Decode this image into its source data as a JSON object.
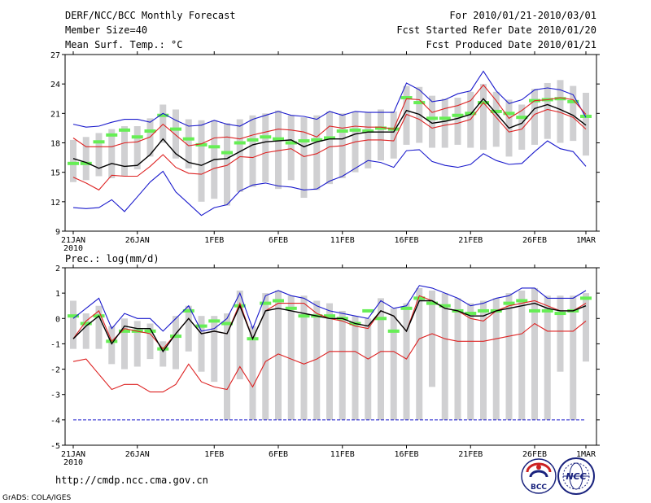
{
  "header": {
    "title": "DERF/NCC/BCC Monthly Forecast",
    "member_size": "Member Size=40",
    "variable": "Mean Surf. Temp.: °C",
    "period": "For 2010/01/21-2010/03/01",
    "fcst_started": "Fcst Started Refer Date 2010/01/20",
    "fcst_produced": "Fcst Produced Date 2010/01/21"
  },
  "footer": {
    "url": "http://cmdp.ncc.cma.gov.cn",
    "credit": "GrADS: COLA/IGES",
    "logo_bcc": "BCC",
    "logo_ncc": "NCC"
  },
  "colors": {
    "box": "#d0d0d2",
    "member": "#66ee55",
    "mean": "#000000",
    "band": "#dd2222",
    "extreme": "#1a1acc",
    "logo_blue": "#1a237e",
    "logo_red": "#cc2222"
  },
  "chart_data": [
    {
      "type": "line",
      "title": "Mean Surf. Temp.: °C",
      "xlabel": "",
      "ylabel": "°C",
      "ylim": [
        9,
        27
      ],
      "yticks": [
        "9",
        "12",
        "15",
        "18",
        "21",
        "24",
        "27"
      ],
      "xlim": [
        0,
        40
      ],
      "xticks": [
        {
          "x": 0,
          "label": "21JAN"
        },
        {
          "x": 5,
          "label": "26JAN"
        },
        {
          "x": 11,
          "label": "1FEB"
        },
        {
          "x": 16,
          "label": "6FEB"
        },
        {
          "x": 21,
          "label": "11FEB"
        },
        {
          "x": 26,
          "label": "16FEB"
        },
        {
          "x": 31,
          "label": "21FEB"
        },
        {
          "x": 36,
          "label": "26FEB"
        },
        {
          "x": 40,
          "label": "1MAR"
        }
      ],
      "year_label": "2010",
      "series": [
        {
          "name": "max",
          "values": [
            19.9,
            19.6,
            19.7,
            20.1,
            20.4,
            20.4,
            20.1,
            21.0,
            20.3,
            19.7,
            19.8,
            20.3,
            19.9,
            19.7,
            20.4,
            20.8,
            21.2,
            20.8,
            20.7,
            20.4,
            21.2,
            20.8,
            21.2,
            21.1,
            21.1,
            21.1,
            24.1,
            23.4,
            22.2,
            22.4,
            23.0,
            23.3,
            25.3,
            23.3,
            22.0,
            22.4,
            23.4,
            23.6,
            23.4,
            22.9,
            20.6
          ]
        },
        {
          "name": "upper",
          "values": [
            18.5,
            17.6,
            17.6,
            17.6,
            18.0,
            18.1,
            18.6,
            19.9,
            18.8,
            17.7,
            17.9,
            18.5,
            18.6,
            18.4,
            18.8,
            19.1,
            19.4,
            19.3,
            19.1,
            18.6,
            19.7,
            19.5,
            19.7,
            19.6,
            19.6,
            19.4,
            22.5,
            22.4,
            21.1,
            21.5,
            21.8,
            22.3,
            23.9,
            22.3,
            20.5,
            21.3,
            22.3,
            22.4,
            22.6,
            22.4,
            20.9
          ]
        },
        {
          "name": "mean",
          "values": [
            16.4,
            16.0,
            15.4,
            15.9,
            15.6,
            15.7,
            16.8,
            18.4,
            16.9,
            16.0,
            15.7,
            16.3,
            16.4,
            17.1,
            17.8,
            18.1,
            18.2,
            18.3,
            17.6,
            18.1,
            18.4,
            18.4,
            18.9,
            19.1,
            19.1,
            19.1,
            21.3,
            20.9,
            20.0,
            20.2,
            20.5,
            20.9,
            22.5,
            21.0,
            19.5,
            20.0,
            21.5,
            21.9,
            21.4,
            20.8,
            19.8
          ]
        },
        {
          "name": "lower",
          "values": [
            14.5,
            13.9,
            13.2,
            14.7,
            14.6,
            14.6,
            15.6,
            16.8,
            15.5,
            14.9,
            14.8,
            15.4,
            15.7,
            16.6,
            16.5,
            17.0,
            17.2,
            17.4,
            16.6,
            16.9,
            17.6,
            17.7,
            18.1,
            18.3,
            18.3,
            18.2,
            20.9,
            20.4,
            19.5,
            19.8,
            20.0,
            20.4,
            22.1,
            20.6,
            19.1,
            19.4,
            20.9,
            21.4,
            21.1,
            20.6,
            19.4
          ]
        },
        {
          "name": "min",
          "values": [
            11.4,
            11.3,
            11.4,
            12.2,
            11.0,
            12.5,
            14.0,
            15.1,
            13.0,
            11.8,
            10.6,
            11.4,
            11.7,
            13.1,
            13.7,
            13.9,
            13.6,
            13.5,
            13.2,
            13.3,
            14.1,
            14.6,
            15.4,
            16.2,
            16.0,
            15.5,
            17.2,
            17.3,
            16.1,
            15.7,
            15.5,
            15.8,
            16.9,
            16.2,
            15.8,
            15.9,
            17.1,
            18.2,
            17.4,
            17.1,
            15.6
          ]
        }
      ],
      "boxes": [
        {
          "low": 14.0,
          "high": 18.3,
          "member": 15.9
        },
        {
          "low": 14.2,
          "high": 18.6,
          "member": 15.9
        },
        {
          "low": 14.6,
          "high": 19.0,
          "member": 18.1
        },
        {
          "low": 14.4,
          "high": 19.4,
          "member": 18.8
        },
        {
          "low": 14.6,
          "high": 19.7,
          "member": 19.3
        },
        {
          "low": 15.3,
          "high": 19.7,
          "member": 18.6
        },
        {
          "low": 16.6,
          "high": 20.5,
          "member": 19.2
        },
        {
          "low": 18.0,
          "high": 21.9,
          "member": 20.8
        },
        {
          "low": 16.4,
          "high": 21.4,
          "member": 19.4
        },
        {
          "low": 15.4,
          "high": 20.4,
          "member": 18.4
        },
        {
          "low": 12.0,
          "high": 20.3,
          "member": 17.8
        },
        {
          "low": 12.3,
          "high": 20.3,
          "member": 17.6
        },
        {
          "low": 11.6,
          "high": 20.0,
          "member": 17.0
        },
        {
          "low": 13.0,
          "high": 20.4,
          "member": 18.0
        },
        {
          "low": 13.5,
          "high": 20.8,
          "member": 18.3
        },
        {
          "low": 14.0,
          "high": 21.0,
          "member": 18.6
        },
        {
          "low": 13.3,
          "high": 21.3,
          "member": 18.4
        },
        {
          "low": 14.2,
          "high": 20.8,
          "member": 18.0
        },
        {
          "low": 12.4,
          "high": 20.6,
          "member": 18.2
        },
        {
          "low": 13.2,
          "high": 20.8,
          "member": 18.3
        },
        {
          "low": 13.8,
          "high": 21.2,
          "member": 18.5
        },
        {
          "low": 14.4,
          "high": 21.0,
          "member": 19.2
        },
        {
          "low": 15.0,
          "high": 21.2,
          "member": 19.3
        },
        {
          "low": 15.4,
          "high": 21.1,
          "member": 19.2
        },
        {
          "low": 16.2,
          "high": 21.4,
          "member": 19.5
        },
        {
          "low": 16.4,
          "high": 21.2,
          "member": 19.4
        },
        {
          "low": 17.8,
          "high": 23.8,
          "member": 22.6
        },
        {
          "low": 18.0,
          "high": 23.7,
          "member": 22.1
        },
        {
          "low": 17.5,
          "high": 22.8,
          "member": 20.5
        },
        {
          "low": 17.5,
          "high": 22.5,
          "member": 20.5
        },
        {
          "low": 17.8,
          "high": 22.6,
          "member": 20.8
        },
        {
          "low": 17.5,
          "high": 23.2,
          "member": 21.0
        },
        {
          "low": 17.3,
          "high": 24.0,
          "member": 22.1
        },
        {
          "low": 17.6,
          "high": 23.2,
          "member": 21.2
        },
        {
          "low": 16.6,
          "high": 22.4,
          "member": 21.0
        },
        {
          "low": 17.3,
          "high": 21.9,
          "member": 20.6
        },
        {
          "low": 17.8,
          "high": 23.5,
          "member": 22.3
        },
        {
          "low": 18.4,
          "high": 24.1,
          "member": 22.4
        },
        {
          "low": 18.0,
          "high": 24.4,
          "member": 22.5
        },
        {
          "low": 18.2,
          "high": 23.8,
          "member": 22.2
        },
        {
          "low": 16.7,
          "high": 23.1,
          "member": 20.7
        }
      ]
    },
    {
      "type": "line",
      "title": "Prec.: log(mm/d)",
      "xlabel": "",
      "ylabel": "log(mm/d)",
      "ylim": [
        -5,
        2
      ],
      "yticks": [
        "-5",
        "-4",
        "-3",
        "-2",
        "-1",
        "0",
        "1",
        "2"
      ],
      "xlim": [
        0,
        40
      ],
      "xticks": [
        {
          "x": 0,
          "label": "21JAN"
        },
        {
          "x": 5,
          "label": "26JAN"
        },
        {
          "x": 11,
          "label": "1FEB"
        },
        {
          "x": 16,
          "label": "6FEB"
        },
        {
          "x": 21,
          "label": "11FEB"
        },
        {
          "x": 26,
          "label": "16FEB"
        },
        {
          "x": 31,
          "label": "21FEB"
        },
        {
          "x": 36,
          "label": "26FEB"
        },
        {
          "x": 40,
          "label": "1MAR"
        }
      ],
      "year_label": "2010",
      "floor_line": -4,
      "series": [
        {
          "name": "max",
          "values": [
            0.0,
            0.4,
            0.8,
            -0.4,
            0.2,
            0.0,
            0.0,
            -0.5,
            0.0,
            0.5,
            -0.5,
            -0.4,
            0.0,
            1.0,
            -0.4,
            0.9,
            1.1,
            0.9,
            0.8,
            0.5,
            0.3,
            0.2,
            0.1,
            0.0,
            0.7,
            0.4,
            0.5,
            1.3,
            1.2,
            1.0,
            0.8,
            0.5,
            0.6,
            0.8,
            0.9,
            1.2,
            1.2,
            0.8,
            0.8,
            0.8,
            1.1
          ]
        },
        {
          "name": "upper",
          "values": [
            -0.8,
            -0.1,
            0.3,
            -0.9,
            -0.4,
            -0.5,
            -0.6,
            -1.2,
            -0.6,
            0.0,
            -0.6,
            -0.5,
            -0.6,
            0.6,
            -0.8,
            0.3,
            0.6,
            0.6,
            0.6,
            0.2,
            0.0,
            -0.1,
            -0.3,
            -0.4,
            0.3,
            0.1,
            -0.5,
            0.9,
            0.7,
            0.4,
            0.3,
            0.0,
            -0.1,
            0.3,
            0.5,
            0.6,
            0.7,
            0.5,
            0.3,
            0.3,
            0.6
          ]
        },
        {
          "name": "mean",
          "values": [
            -0.8,
            -0.3,
            0.1,
            -1.0,
            -0.3,
            -0.4,
            -0.4,
            -1.3,
            -0.6,
            0.0,
            -0.6,
            -0.5,
            -0.6,
            0.5,
            -0.8,
            0.3,
            0.4,
            0.3,
            0.2,
            0.1,
            0.0,
            0.0,
            -0.2,
            -0.3,
            0.3,
            0.1,
            -0.5,
            0.7,
            0.7,
            0.4,
            0.3,
            0.1,
            0.1,
            0.3,
            0.4,
            0.5,
            0.6,
            0.4,
            0.3,
            0.3,
            0.5
          ]
        },
        {
          "name": "lower",
          "values": [
            -1.7,
            -1.6,
            -2.2,
            -2.8,
            -2.6,
            -2.6,
            -2.9,
            -2.9,
            -2.6,
            -1.8,
            -2.5,
            -2.7,
            -2.8,
            -1.9,
            -2.7,
            -1.7,
            -1.4,
            -1.6,
            -1.8,
            -1.6,
            -1.3,
            -1.3,
            -1.3,
            -1.6,
            -1.3,
            -1.3,
            -1.6,
            -0.8,
            -0.6,
            -0.8,
            -0.9,
            -0.9,
            -0.9,
            -0.8,
            -0.7,
            -0.6,
            -0.2,
            -0.5,
            -0.5,
            -0.5,
            -0.1
          ]
        }
      ],
      "boxes": [
        {
          "low": -1.2,
          "high": 0.7,
          "member": 0.1
        },
        {
          "low": -1.2,
          "high": 0.2,
          "member": -0.2
        },
        {
          "low": -1.2,
          "high": 0.5,
          "member": 0.1
        },
        {
          "low": -1.8,
          "high": -0.3,
          "member": -0.9
        },
        {
          "low": -2.0,
          "high": 0.0,
          "member": -0.5
        },
        {
          "low": -1.9,
          "high": -0.1,
          "member": -0.5
        },
        {
          "low": -1.6,
          "high": -0.2,
          "member": -0.5
        },
        {
          "low": -1.9,
          "high": -0.9,
          "member": -1.2
        },
        {
          "low": -2.0,
          "high": 0.1,
          "member": -0.7
        },
        {
          "low": -1.3,
          "high": 0.5,
          "member": 0.3
        },
        {
          "low": -2.1,
          "high": 0.1,
          "member": -0.3
        },
        {
          "low": -2.5,
          "high": 0.1,
          "member": -0.1
        },
        {
          "low": -4.0,
          "high": 0.2,
          "member": -0.2
        },
        {
          "low": -2.4,
          "high": 1.1,
          "member": 0.5
        },
        {
          "low": -4.0,
          "high": -0.3,
          "member": -0.8
        },
        {
          "low": -4.0,
          "high": 1.0,
          "member": 0.6
        },
        {
          "low": -4.0,
          "high": 1.1,
          "member": 0.7
        },
        {
          "low": -4.0,
          "high": 0.9,
          "member": 0.4
        },
        {
          "low": -4.0,
          "high": 0.9,
          "member": 0.1
        },
        {
          "low": -4.0,
          "high": 0.7,
          "member": 0.1
        },
        {
          "low": -4.0,
          "high": 0.6,
          "member": 0.1
        },
        {
          "low": -4.0,
          "high": 0.3,
          "member": 0.0
        },
        {
          "low": -4.0,
          "high": 0.1,
          "member": -0.2
        },
        {
          "low": -4.0,
          "high": 0.0,
          "member": 0.3
        },
        {
          "low": -4.0,
          "high": 0.8,
          "member": 0.0
        },
        {
          "low": -4.0,
          "high": 0.4,
          "member": -0.5
        },
        {
          "low": -4.0,
          "high": 0.6,
          "member": 0.4
        },
        {
          "low": -4.0,
          "high": 1.2,
          "member": 0.8
        },
        {
          "low": -2.7,
          "high": 1.1,
          "member": 0.6
        },
        {
          "low": -4.0,
          "high": 1.0,
          "member": 0.5
        },
        {
          "low": -4.0,
          "high": 0.8,
          "member": 0.3
        },
        {
          "low": -4.0,
          "high": 0.6,
          "member": 0.2
        },
        {
          "low": -4.0,
          "high": 0.7,
          "member": 0.3
        },
        {
          "low": -4.0,
          "high": 0.8,
          "member": 0.3
        },
        {
          "low": -4.0,
          "high": 1.0,
          "member": 0.6
        },
        {
          "low": -4.0,
          "high": 1.1,
          "member": 0.7
        },
        {
          "low": -4.0,
          "high": 1.2,
          "member": 0.3
        },
        {
          "low": -4.0,
          "high": 0.9,
          "member": 0.3
        },
        {
          "low": -2.1,
          "high": 0.9,
          "member": 0.2
        },
        {
          "low": -4.0,
          "high": 0.9,
          "member": 0.3
        },
        {
          "low": -1.7,
          "high": 1.0,
          "member": 0.8
        }
      ]
    }
  ]
}
